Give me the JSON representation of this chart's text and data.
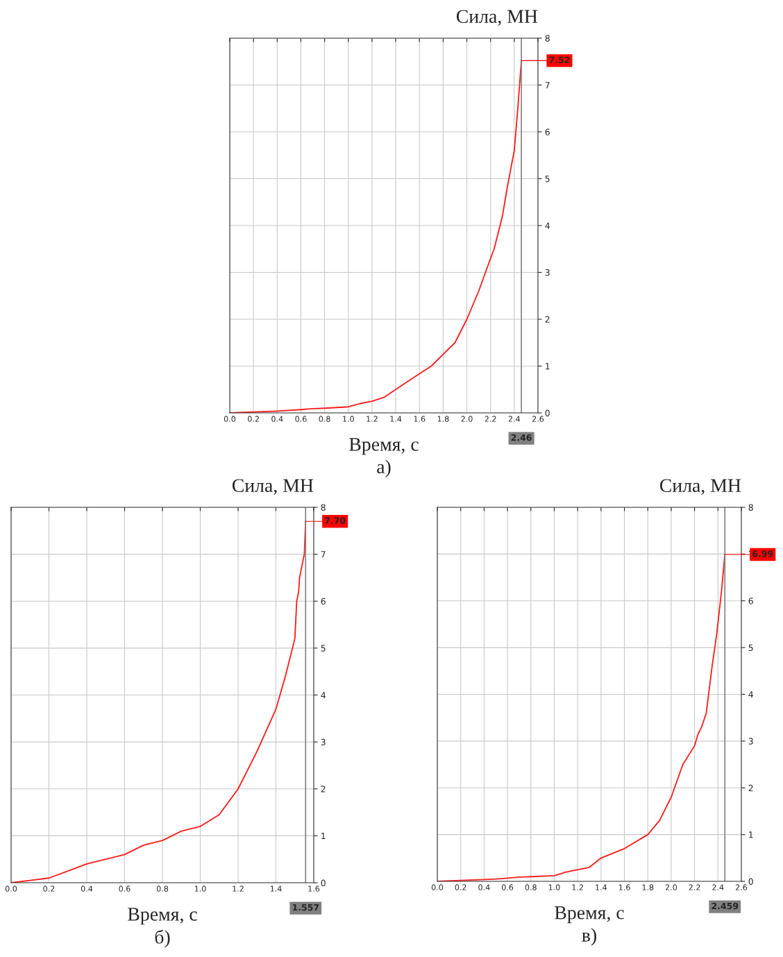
{
  "chart_data": [
    {
      "type": "line",
      "title": "Сила, МН",
      "xlabel": "Время, с",
      "x": [
        0,
        0.2,
        0.4,
        0.6,
        0.7,
        0.8,
        1.0,
        1.1,
        1.2,
        1.3,
        1.4,
        1.5,
        1.7,
        1.9,
        2.0,
        2.1,
        2.2,
        2.23,
        2.26,
        2.3,
        2.34,
        2.4,
        2.43,
        2.46
      ],
      "series": [
        {
          "color": "#ff1a1a",
          "values": [
            0,
            0.02,
            0.04,
            0.07,
            0.09,
            0.1,
            0.13,
            0.2,
            0.25,
            0.33,
            0.5,
            0.67,
            1.0,
            1.5,
            2.0,
            2.6,
            3.3,
            3.5,
            3.8,
            4.2,
            4.8,
            5.6,
            6.5,
            7.52
          ]
        }
      ],
      "xlim": [
        0,
        2.6
      ],
      "ylim": [
        0,
        8
      ],
      "xticks": [
        {
          "value": 0,
          "label": "0.0"
        },
        {
          "value": 0.2,
          "label": "0.2"
        },
        {
          "value": 0.4,
          "label": "0.4"
        },
        {
          "value": 0.6,
          "label": "0.6"
        },
        {
          "value": 0.8,
          "label": "0.8"
        },
        {
          "value": 1.0,
          "label": "1.0"
        },
        {
          "value": 1.2,
          "label": "1.2"
        },
        {
          "value": 1.4,
          "label": "1.4"
        },
        {
          "value": 1.6,
          "label": "1.6"
        },
        {
          "value": 1.8,
          "label": "1.8"
        },
        {
          "value": 2.0,
          "label": "2.0"
        },
        {
          "value": 2.2,
          "label": "2.2"
        },
        {
          "value": 2.4,
          "label": "2.4"
        },
        {
          "value": 2.6,
          "label": "2.6"
        }
      ],
      "yticks": [
        0,
        1,
        2,
        3,
        4,
        5,
        6,
        7,
        8
      ],
      "ref_lines": [
        {
          "axis": "x",
          "value": 2.46,
          "label": "2.46",
          "color": "#808080"
        }
      ],
      "annotations": [
        {
          "text": "7.52",
          "x": 2.46,
          "y": 7.52
        },
        "а)"
      ],
      "grid": true
    },
    {
      "type": "line",
      "title": "Сила, МН",
      "xlabel": "Время, с",
      "x": [
        0,
        0.1,
        0.2,
        0.3,
        0.4,
        0.5,
        0.6,
        0.7,
        0.8,
        0.9,
        1.0,
        1.1,
        1.2,
        1.3,
        1.4,
        1.45,
        1.5,
        1.51,
        1.52,
        1.525,
        1.55,
        1.557
      ],
      "series": [
        {
          "color": "#ff1a1a",
          "values": [
            0,
            0.05,
            0.1,
            0.25,
            0.4,
            0.5,
            0.6,
            0.8,
            0.9,
            1.1,
            1.2,
            1.45,
            2.0,
            2.8,
            3.7,
            4.4,
            5.2,
            6.0,
            6.2,
            6.5,
            7.0,
            7.7
          ]
        }
      ],
      "xlim": [
        0,
        1.6
      ],
      "ylim": [
        0,
        8
      ],
      "xticks": [
        {
          "value": 0,
          "label": "0.0"
        },
        {
          "value": 0.2,
          "label": "0.2"
        },
        {
          "value": 0.4,
          "label": "0.4"
        },
        {
          "value": 0.6,
          "label": "0.6"
        },
        {
          "value": 0.8,
          "label": "0.8"
        },
        {
          "value": 1.0,
          "label": "1.0"
        },
        {
          "value": 1.2,
          "label": "1.2"
        },
        {
          "value": 1.4,
          "label": "1.4"
        },
        {
          "value": 1.6,
          "label": "1.6"
        }
      ],
      "yticks": [
        0,
        1,
        2,
        3,
        4,
        5,
        6,
        7,
        8
      ],
      "ref_lines": [
        {
          "axis": "x",
          "value": 1.557,
          "label": "1.557",
          "color": "#808080"
        }
      ],
      "annotations": [
        {
          "text": "7.70",
          "x": 1.557,
          "y": 7.7
        },
        "б)"
      ],
      "grid": true
    },
    {
      "type": "line",
      "title": "Сила, МН",
      "xlabel": "Время, с",
      "x": [
        0,
        0.2,
        0.4,
        0.5,
        0.6,
        0.7,
        0.8,
        1.0,
        1.1,
        1.3,
        1.4,
        1.6,
        1.8,
        1.9,
        2.0,
        2.1,
        2.2,
        2.23,
        2.26,
        2.3,
        2.35,
        2.39,
        2.43,
        2.459
      ],
      "series": [
        {
          "color": "#ff1a1a",
          "values": [
            0,
            0.02,
            0.04,
            0.05,
            0.07,
            0.09,
            0.1,
            0.12,
            0.2,
            0.3,
            0.5,
            0.7,
            1.0,
            1.3,
            1.8,
            2.5,
            2.9,
            3.15,
            3.3,
            3.6,
            4.6,
            5.3,
            6.2,
            6.99
          ]
        }
      ],
      "xlim": [
        0,
        2.6
      ],
      "ylim": [
        0,
        8
      ],
      "xticks": [
        {
          "value": 0,
          "label": "0.0"
        },
        {
          "value": 0.2,
          "label": "0.2"
        },
        {
          "value": 0.4,
          "label": "0.4"
        },
        {
          "value": 0.6,
          "label": "0.6"
        },
        {
          "value": 0.8,
          "label": "0.8"
        },
        {
          "value": 1.0,
          "label": "1.0"
        },
        {
          "value": 1.2,
          "label": "1.2"
        },
        {
          "value": 1.4,
          "label": "1.4"
        },
        {
          "value": 1.6,
          "label": "1.6"
        },
        {
          "value": 1.8,
          "label": "1.8"
        },
        {
          "value": 2.0,
          "label": "2.0"
        },
        {
          "value": 2.2,
          "label": "2.2"
        },
        {
          "value": 2.4,
          "label": "2.4"
        },
        {
          "value": 2.6,
          "label": "2.6"
        }
      ],
      "yticks": [
        0,
        1,
        2,
        3,
        4,
        5,
        6,
        7,
        8
      ],
      "ref_lines": [
        {
          "axis": "x",
          "value": 2.459,
          "label": "2.459",
          "color": "#808080"
        }
      ],
      "annotations": [
        {
          "text": "6.99",
          "x": 2.459,
          "y": 6.99
        },
        "в)"
      ],
      "grid": true
    }
  ]
}
